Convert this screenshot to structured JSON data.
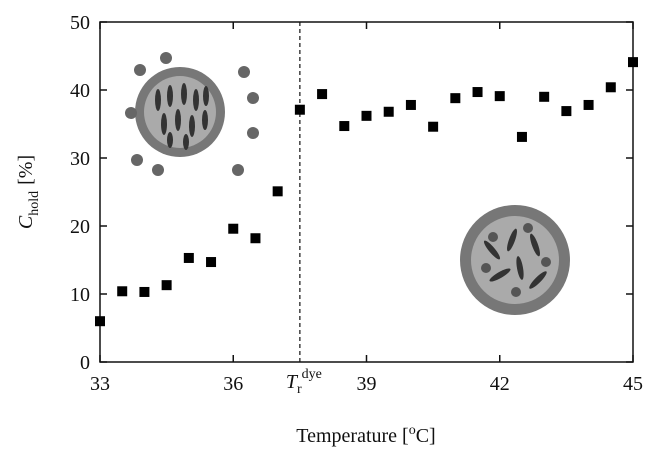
{
  "chart_data": {
    "type": "scatter",
    "xlabel": {
      "main": "Temperature [",
      "sup": "o",
      "tail": "C]"
    },
    "ylabel": {
      "main": "C",
      "sub": "hold",
      "unit": "[%]"
    },
    "x": [
      33,
      33.5,
      34,
      34.5,
      35,
      35.5,
      36,
      36.5,
      37,
      37.5,
      38,
      38.5,
      39,
      39.5,
      40,
      40.5,
      41,
      41.5,
      42,
      42.5,
      43,
      43.5,
      44,
      44.5,
      45
    ],
    "values": [
      6.0,
      10.4,
      10.3,
      11.3,
      15.3,
      14.7,
      19.6,
      18.2,
      25.1,
      37.1,
      39.4,
      34.7,
      36.2,
      36.8,
      37.8,
      34.6,
      38.8,
      39.7,
      39.1,
      33.1,
      39.0,
      36.9,
      37.8,
      40.4,
      44.1
    ],
    "color": "#000000",
    "xlim": [
      33,
      45
    ],
    "xticks": [
      33,
      36,
      39,
      42,
      45
    ],
    "ylim": [
      0,
      50
    ],
    "yticks": [
      0,
      10,
      20,
      30,
      40,
      50
    ],
    "vline": {
      "x": 37.5,
      "main": "T",
      "sub": "r",
      "sup": "dye"
    }
  }
}
